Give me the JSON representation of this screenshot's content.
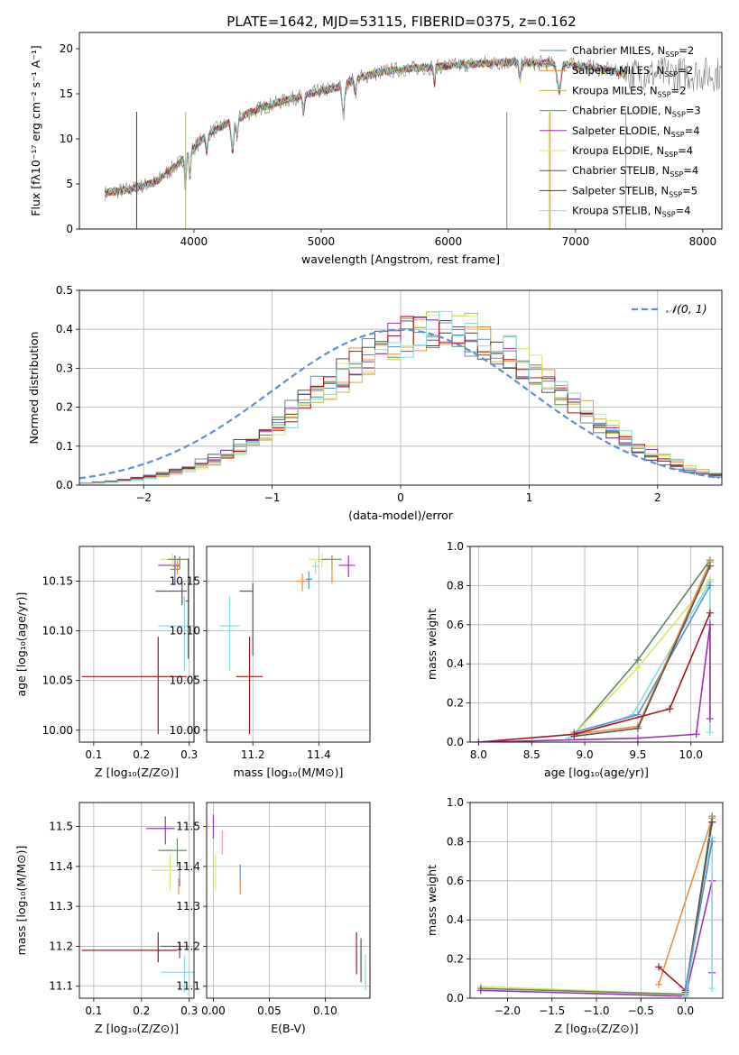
{
  "figure": {
    "title": "PLATE=1642, MJD=53115, FIBERID=0375, z=0.162"
  },
  "colors": {
    "Chabrier MILES": "#5b8fc9",
    "Salpeter MILES": "#f08c3a",
    "Kroupa MILES": "#c9b340",
    "Chabrier ELODIE": "#5f8a62",
    "Salpeter ELODIE": "#9a32b3",
    "Kroupa ELODIE": "#d8e86a",
    "Chabrier STELIB": "#555555",
    "Salpeter STELIB": "#a8141e",
    "Kroupa STELIB": "#86dde0",
    "data": "#7f7f7f",
    "gaussian": "#5b8fd6",
    "pink": "#f29cc4"
  },
  "chart_data": [
    {
      "id": "spectrum",
      "type": "line",
      "title": "PLATE=1642, MJD=53115, FIBERID=0375, z=0.162",
      "xlabel": "wavelength [Angstrom, rest frame]",
      "ylabel": "Flux [fλ10⁻¹⁷ erg cm⁻² s⁻¹ A⁻¹]",
      "xlim": [
        3100,
        8150
      ],
      "ylim": [
        0,
        21.8
      ],
      "xticks": [
        4000,
        5000,
        6000,
        7000,
        8000
      ],
      "yticks": [
        0,
        5,
        10,
        15,
        20
      ],
      "grid": false,
      "legend_position": "top-right",
      "legend": [
        {
          "label": "Chabrier MILES, N",
          "sub": "SSP",
          "tail": "=2"
        },
        {
          "label": "Salpeter MILES, N",
          "sub": "SSP",
          "tail": "=2"
        },
        {
          "label": "Kroupa MILES, N",
          "sub": "SSP",
          "tail": "=2"
        },
        {
          "label": "Chabrier ELODIE, N",
          "sub": "SSP",
          "tail": "=3"
        },
        {
          "label": "Salpeter ELODIE, N",
          "sub": "SSP",
          "tail": "=4"
        },
        {
          "label": "Kroupa ELODIE, N",
          "sub": "SSP",
          "tail": "=4"
        },
        {
          "label": "Chabrier STELIB, N",
          "sub": "SSP",
          "tail": "=4"
        },
        {
          "label": "Salpeter STELIB, N",
          "sub": "SSP",
          "tail": "=5"
        },
        {
          "label": "Kroupa STELIB, N",
          "sub": "SSP",
          "tail": "=4"
        }
      ],
      "trend_x": [
        3300,
        3500,
        3700,
        3900,
        4100,
        4300,
        4500,
        4700,
        4900,
        5100,
        5300,
        5500,
        5700,
        5900,
        6100,
        6300,
        6500,
        6700,
        6900,
        7100,
        7300,
        7400
      ],
      "trend_y": [
        4.0,
        4.4,
        5.2,
        7.5,
        10.5,
        12.0,
        13.3,
        14.2,
        15.0,
        15.6,
        16.8,
        17.5,
        17.8,
        18.0,
        18.2,
        18.4,
        18.5,
        18.4,
        18.3,
        18.0,
        17.5,
        17.2
      ],
      "data_extent": [
        3300,
        8150
      ]
    },
    {
      "id": "residuals",
      "type": "histogram",
      "xlabel": "(data-model)/error",
      "ylabel": "Normed distribution",
      "xlim": [
        -2.5,
        2.5
      ],
      "ylim": [
        0,
        0.5
      ],
      "xticks": [
        -2,
        -1,
        0,
        1,
        2
      ],
      "yticks": [
        0.0,
        0.1,
        0.2,
        0.3,
        0.4,
        0.5
      ],
      "grid": true,
      "legend_position": "top-right",
      "legend": [
        {
          "label": "𝒩(0, 1)"
        }
      ],
      "bin_width": 0.1,
      "profile_center": 0.3,
      "profile_sigma": 0.92,
      "profile_peak": 0.4
    },
    {
      "id": "age-vs-Z",
      "type": "errorbar",
      "xlabel": "Z [log₁₀(Z/Z⊙)]",
      "ylabel": "age  [log₁₀(age/yr)]",
      "xlim": [
        0.07,
        0.31
      ],
      "ylim": [
        9.988,
        10.185
      ],
      "xticks": [
        0.1,
        0.2,
        0.3
      ],
      "yticks": [
        10.0,
        10.05,
        10.1,
        10.15
      ],
      "grid": true,
      "points": [
        {
          "model": "Salpeter STELIB",
          "x": 0.235,
          "y": 10.054,
          "xerr": [
            0.16,
            0.06
          ],
          "yerr": [
            0.058,
            0.04
          ]
        },
        {
          "model": "Kroupa STELIB",
          "x": 0.29,
          "y": 10.105,
          "xerr": [
            0.055,
            0.02
          ],
          "yerr": [
            0.045,
            0.03
          ]
        },
        {
          "model": "Chabrier STELIB",
          "x": 0.285,
          "y": 10.14,
          "xerr": [
            0.055,
            0.01
          ],
          "yerr": [
            0.014,
            0.01
          ]
        },
        {
          "model": "Chabrier STELIB",
          "x": 0.298,
          "y": 10.13,
          "xerr": [
            0.005,
            0.002
          ],
          "yerr": [
            0.058,
            0.043
          ]
        },
        {
          "model": "Salpeter ELODIE",
          "x": 0.27,
          "y": 10.166,
          "xerr": [
            0.035,
            0.01
          ],
          "yerr": [
            0.02,
            0.01
          ]
        },
        {
          "model": "Kroupa ELODIE",
          "x": 0.265,
          "y": 10.172,
          "xerr": [
            0.025,
            0.02
          ],
          "yerr": [
            0.008,
            0.006
          ]
        },
        {
          "model": "Chabrier ELODIE",
          "x": 0.28,
          "y": 10.172,
          "xerr": [
            0.025,
            0.02
          ],
          "yerr": [
            0.01,
            0.003
          ]
        },
        {
          "model": "Chabrier MILES",
          "x": 0.27,
          "y": 10.162,
          "xerr": [
            0.01,
            0.01
          ],
          "yerr": [
            0.012,
            0.01
          ]
        },
        {
          "model": "Salpeter MILES",
          "x": 0.275,
          "y": 10.165,
          "xerr": [
            0.01,
            0.005
          ],
          "yerr": [
            0.008,
            0.006
          ]
        }
      ]
    },
    {
      "id": "age-vs-mass",
      "type": "errorbar",
      "xlabel": "mass [log₁₀(M/M⊙)]",
      "ylabel": "",
      "xlim": [
        11.06,
        11.555
      ],
      "ylim": [
        9.988,
        10.185
      ],
      "xticks": [
        11.2,
        11.4
      ],
      "yticks": [
        10.0,
        10.05,
        10.1,
        10.15
      ],
      "grid": true,
      "points": [
        {
          "model": "Salpeter STELIB",
          "x": 11.19,
          "y": 10.054,
          "xerr": [
            0.04,
            0.04
          ],
          "yerr": [
            0.058,
            0.04
          ]
        },
        {
          "model": "Kroupa STELIB",
          "x": 11.13,
          "y": 10.105,
          "xerr": [
            0.03,
            0.03
          ],
          "yerr": [
            0.045,
            0.03
          ]
        },
        {
          "model": "Chabrier STELIB",
          "x": 11.2,
          "y": 10.14,
          "xerr": [
            0.04,
            0.0
          ],
          "yerr": [
            0.065,
            0.008
          ]
        },
        {
          "model": "Salpeter ELODIE",
          "x": 11.49,
          "y": 10.166,
          "xerr": [
            0.03,
            0.02
          ],
          "yerr": [
            0.012,
            0.01
          ]
        },
        {
          "model": "Kroupa ELODIE",
          "x": 11.41,
          "y": 10.172,
          "xerr": [
            0.04,
            0.04
          ],
          "yerr": [
            0.008,
            0.006
          ]
        },
        {
          "model": "Chabrier ELODIE",
          "x": 11.44,
          "y": 10.172,
          "xerr": [
            0.03,
            0.03
          ],
          "yerr": [
            0.006,
            0.004
          ]
        },
        {
          "model": "Salpeter MILES",
          "x": 11.35,
          "y": 10.15,
          "xerr": [
            0.02,
            0.02
          ],
          "yerr": [
            0.01,
            0.008
          ]
        },
        {
          "model": "Chabrier MILES",
          "x": 11.37,
          "y": 10.152,
          "xerr": [
            0.01,
            0.01
          ],
          "yerr": [
            0.01,
            0.008
          ]
        },
        {
          "model": "Kroupa STELIB",
          "x": 11.39,
          "y": 10.165,
          "xerr": [
            0.01,
            0.01
          ],
          "yerr": [
            0.008,
            0.005
          ]
        },
        {
          "model": "Salpeter MILES",
          "x": 11.44,
          "y": 10.162,
          "xerr": [
            0.0,
            0.0
          ],
          "yerr": [
            0.014,
            0.012
          ]
        }
      ]
    },
    {
      "id": "mass-weight-vs-age",
      "type": "line",
      "xlabel": "age  [log₁₀(age/yr)]",
      "ylabel": "mass weight",
      "xlim": [
        7.92,
        10.3
      ],
      "ylim": [
        0,
        1.0
      ],
      "xticks": [
        8.0,
        8.5,
        9.0,
        9.5,
        10.0
      ],
      "yticks": [
        0.0,
        0.2,
        0.4,
        0.6,
        0.8,
        1.0
      ],
      "grid": true,
      "series": [
        {
          "model": "Chabrier ELODIE",
          "x": [
            8.9,
            9.5,
            10.18
          ],
          "y": [
            0.04,
            0.42,
            0.93
          ]
        },
        {
          "model": "Kroupa ELODIE",
          "x": [
            8.9,
            9.5,
            10.18,
            10.18
          ],
          "y": [
            0.04,
            0.38,
            0.83,
            0.05
          ]
        },
        {
          "model": "Kroupa STELIB",
          "x": [
            8.85,
            9.45,
            10.18,
            10.18
          ],
          "y": [
            0.02,
            0.14,
            0.82,
            0.05
          ]
        },
        {
          "model": "Chabrier MILES",
          "x": [
            8.9,
            9.5,
            10.18
          ],
          "y": [
            0.05,
            0.14,
            0.8
          ]
        },
        {
          "model": "Salpeter MILES",
          "x": [
            8.9,
            9.5,
            10.18
          ],
          "y": [
            0.04,
            0.08,
            0.92
          ]
        },
        {
          "model": "Chabrier STELIB",
          "x": [
            8.9,
            9.5,
            10.18
          ],
          "y": [
            0.03,
            0.07,
            0.9
          ]
        },
        {
          "model": "Salpeter STELIB",
          "x": [
            8.0,
            8.9,
            9.8,
            10.18
          ],
          "y": [
            0.0,
            0.04,
            0.17,
            0.66
          ]
        },
        {
          "model": "Salpeter ELODIE",
          "x": [
            8.0,
            9.5,
            10.05,
            10.18,
            10.18
          ],
          "y": [
            0.0,
            0.02,
            0.04,
            0.6,
            0.12
          ]
        }
      ]
    },
    {
      "id": "mass-vs-Z",
      "type": "errorbar",
      "xlabel": "Z [log₁₀(Z/Z⊙)]",
      "ylabel": "mass [log₁₀(M/M⊙)]",
      "xlim": [
        0.07,
        0.31
      ],
      "ylim": [
        11.07,
        11.56
      ],
      "xticks": [
        0.1,
        0.2,
        0.3
      ],
      "yticks": [
        11.1,
        11.2,
        11.3,
        11.4,
        11.5
      ],
      "grid": true,
      "points": [
        {
          "model": "Salpeter STELIB",
          "x": 0.235,
          "y": 11.19,
          "xerr": [
            0.16,
            0.04
          ],
          "yerr": [
            0.03,
            0.045
          ]
        },
        {
          "model": "Chabrier STELIB",
          "x": 0.28,
          "y": 11.2,
          "xerr": [
            0.04,
            0.02
          ],
          "yerr": [
            0.03,
            0.01
          ]
        },
        {
          "model": "Kroupa STELIB",
          "x": 0.29,
          "y": 11.135,
          "xerr": [
            0.05,
            0.02
          ],
          "yerr": [
            0.05,
            0.04
          ]
        },
        {
          "model": "Salpeter ELODIE",
          "x": 0.25,
          "y": 11.495,
          "xerr": [
            0.04,
            0.02
          ],
          "yerr": [
            0.04,
            0.03
          ]
        },
        {
          "model": "Chabrier ELODIE",
          "x": 0.275,
          "y": 11.44,
          "xerr": [
            0.04,
            0.02
          ],
          "yerr": [
            0.04,
            0.03
          ]
        },
        {
          "model": "Kroupa ELODIE",
          "x": 0.26,
          "y": 11.39,
          "xerr": [
            0.04,
            0.02
          ],
          "yerr": [
            0.05,
            0.04
          ]
        },
        {
          "model": "Salpeter MILES",
          "x": 0.278,
          "y": 11.35,
          "xerr": [
            0.0,
            0.0
          ],
          "yerr": [
            0.02,
            0.02
          ]
        },
        {
          "model": "Chabrier MILES",
          "x": 0.28,
          "y": 11.37,
          "xerr": [
            0.0,
            0.0
          ],
          "yerr": [
            0.02,
            0.02
          ]
        }
      ]
    },
    {
      "id": "mass-vs-EBV",
      "type": "errorbar",
      "xlabel": "E(B-V)",
      "ylabel": "",
      "xlim": [
        -0.006,
        0.14
      ],
      "ylim": [
        11.07,
        11.56
      ],
      "xticks": [
        0.0,
        0.05,
        0.1
      ],
      "yticks": [
        11.1,
        11.2,
        11.3,
        11.4,
        11.5
      ],
      "grid": true,
      "points": [
        {
          "model": "Salpeter ELODIE",
          "x": 0.0,
          "y": 11.5,
          "xerr": [
            0,
            0
          ],
          "yerr": [
            0.03,
            0.03
          ]
        },
        {
          "model": "pink",
          "x": 0.008,
          "y": 11.46,
          "xerr": [
            0,
            0
          ],
          "yerr": [
            0.03,
            0.03
          ]
        },
        {
          "model": "Kroupa ELODIE",
          "x": 0.002,
          "y": 11.39,
          "xerr": [
            0,
            0
          ],
          "yerr": [
            0.05,
            0.04
          ]
        },
        {
          "model": "Chabrier MILES",
          "x": 0.024,
          "y": 11.385,
          "xerr": [
            0,
            0
          ],
          "yerr": [
            0.02,
            0.02
          ]
        },
        {
          "model": "Salpeter MILES",
          "x": 0.024,
          "y": 11.35,
          "xerr": [
            0,
            0
          ],
          "yerr": [
            0.02,
            0.02
          ]
        },
        {
          "model": "Salpeter STELIB",
          "x": 0.128,
          "y": 11.19,
          "xerr": [
            0,
            0
          ],
          "yerr": [
            0.06,
            0.045
          ]
        },
        {
          "model": "Chabrier STELIB",
          "x": 0.132,
          "y": 11.17,
          "xerr": [
            0,
            0
          ],
          "yerr": [
            0.06,
            0.05
          ]
        },
        {
          "model": "Kroupa STELIB",
          "x": 0.136,
          "y": 11.14,
          "xerr": [
            0,
            0
          ],
          "yerr": [
            0.05,
            0.04
          ]
        }
      ]
    },
    {
      "id": "mass-weight-vs-Z",
      "type": "line",
      "xlabel": "Z [log₁₀(Z/Z⊙)]",
      "ylabel": "mass weight",
      "xlim": [
        -2.42,
        0.42
      ],
      "ylim": [
        0,
        1.0
      ],
      "xticks": [
        -2.0,
        -1.5,
        -1.0,
        -0.5,
        0.0
      ],
      "yticks": [
        0.0,
        0.2,
        0.4,
        0.6,
        0.8,
        1.0
      ],
      "grid": true,
      "series": [
        {
          "model": "Kroupa ELODIE",
          "x": [
            -2.3,
            0.0,
            0.3
          ],
          "y": [
            0.06,
            0.02,
            0.92
          ]
        },
        {
          "model": "Chabrier ELODIE",
          "x": [
            -2.3,
            0.0,
            0.3
          ],
          "y": [
            0.05,
            0.02,
            0.93
          ]
        },
        {
          "model": "Salpeter ELODIE",
          "x": [
            -2.3,
            0.0,
            0.3,
            0.3
          ],
          "y": [
            0.04,
            0.01,
            0.6,
            0.13
          ]
        },
        {
          "model": "Salpeter MILES",
          "x": [
            -0.3,
            0.3
          ],
          "y": [
            0.07,
            0.92
          ]
        },
        {
          "model": "Salpeter STELIB",
          "x": [
            -0.3,
            0.0,
            0.3
          ],
          "y": [
            0.16,
            0.04,
            0.9
          ]
        },
        {
          "model": "Chabrier STELIB",
          "x": [
            0.0,
            0.3
          ],
          "y": [
            0.03,
            0.9
          ]
        },
        {
          "model": "Kroupa STELIB",
          "x": [
            0.0,
            0.3,
            0.3
          ],
          "y": [
            0.01,
            0.82,
            0.05
          ]
        },
        {
          "model": "Chabrier MILES",
          "x": [
            0.0,
            0.3
          ],
          "y": [
            0.05,
            0.8
          ]
        }
      ]
    }
  ]
}
